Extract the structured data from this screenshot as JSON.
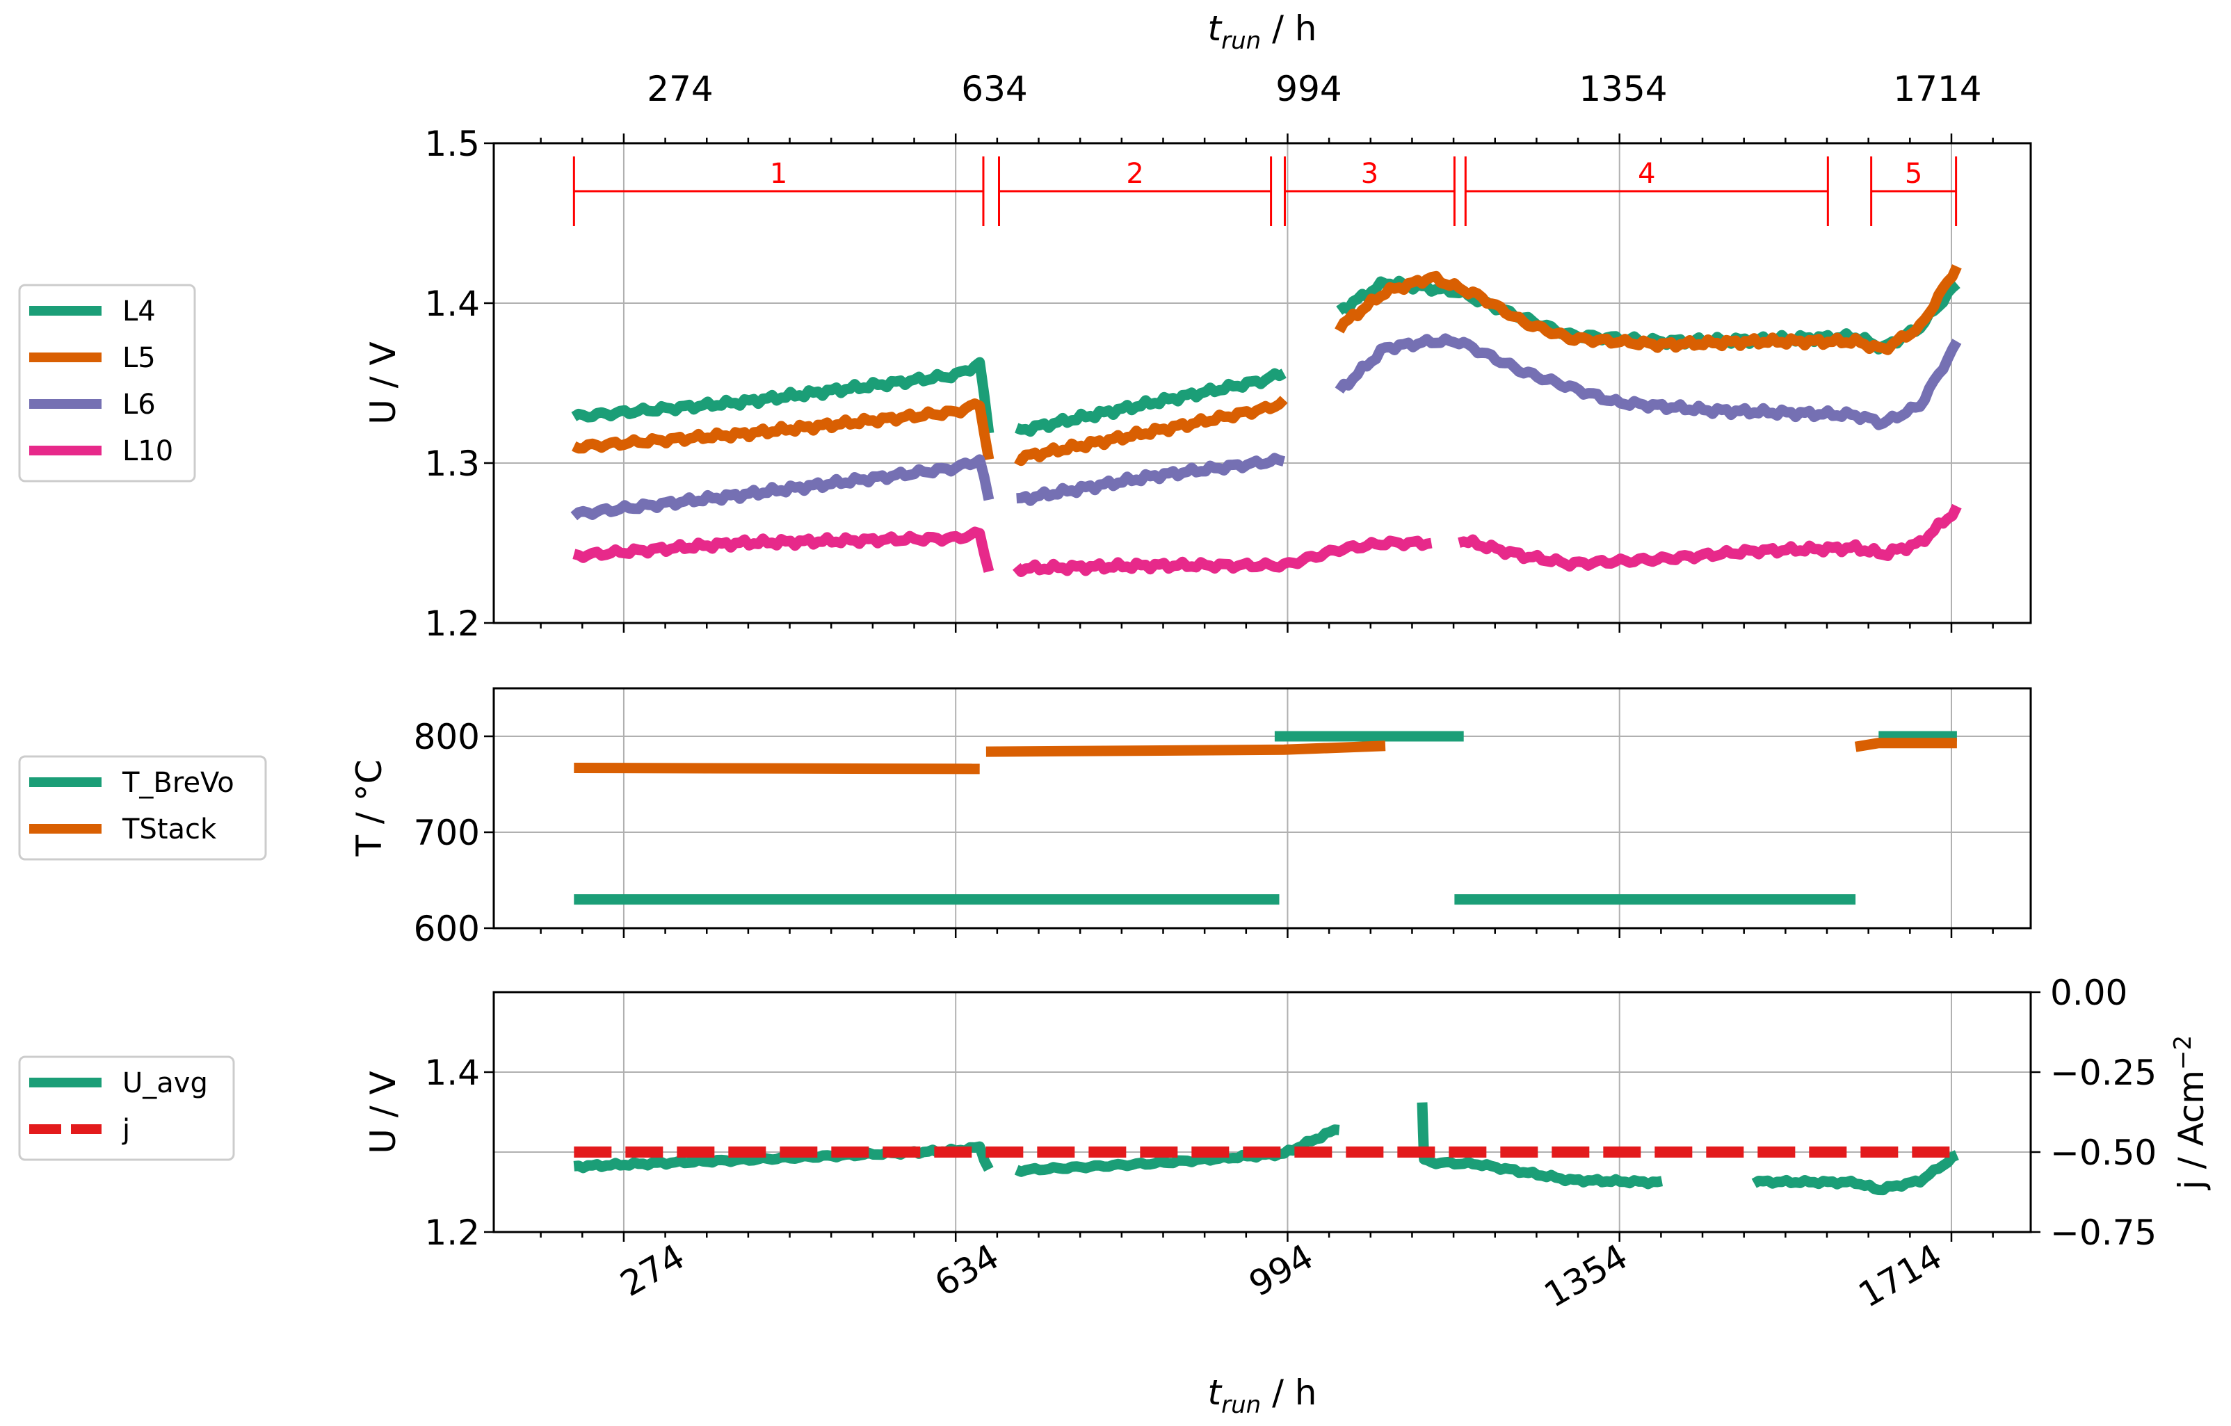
{
  "colors": {
    "L4": "#1b9e77",
    "L5": "#d95f02",
    "L6": "#7570b3",
    "L10": "#e7298a",
    "T_BreVo": "#1b9e77",
    "TStack": "#d95f02",
    "U_avg": "#1b9e77",
    "j": "#e31a1c",
    "segments": "#ff0000"
  },
  "chart_data": [
    {
      "type": "line",
      "title": "",
      "xlabel_top_var": "t",
      "xlabel_top_sub": "run",
      "xlabel_top_unit": " / h",
      "ylabel": "U / V",
      "xlim": [
        133,
        1800
      ],
      "ylim": [
        1.2,
        1.5
      ],
      "xticks": [
        "274",
        "634",
        "994",
        "1354",
        "1714"
      ],
      "yticks": [
        "1.2",
        "1.3",
        "1.4",
        "1.5"
      ],
      "grid": true,
      "legend_position": "left",
      "series": [
        {
          "name": "L4",
          "gaps": [
            5,
            9
          ],
          "points": [
            [
              220,
              1.329
            ],
            [
              400,
              1.338
            ],
            [
              634,
              1.355
            ],
            [
              660,
              1.362
            ],
            [
              670,
              1.32
            ],
            [
              700,
              1.32
            ],
            [
              850,
              1.338
            ],
            [
              970,
              1.352
            ],
            [
              990,
              1.357
            ],
            [
              1050,
              1.395
            ],
            [
              1100,
              1.413
            ],
            [
              1180,
              1.407
            ],
            [
              1230,
              1.395
            ],
            [
              1300,
              1.38
            ],
            [
              1400,
              1.376
            ],
            [
              1500,
              1.377
            ],
            [
              1610,
              1.379
            ],
            [
              1640,
              1.372
            ],
            [
              1680,
              1.385
            ],
            [
              1720,
              1.412
            ]
          ]
        },
        {
          "name": "L5",
          "gaps": [
            5,
            9
          ],
          "points": [
            [
              220,
              1.31
            ],
            [
              400,
              1.318
            ],
            [
              634,
              1.332
            ],
            [
              660,
              1.337
            ],
            [
              670,
              1.302
            ],
            [
              700,
              1.303
            ],
            [
              850,
              1.32
            ],
            [
              970,
              1.334
            ],
            [
              990,
              1.338
            ],
            [
              1050,
              1.385
            ],
            [
              1100,
              1.407
            ],
            [
              1150,
              1.416
            ],
            [
              1200,
              1.405
            ],
            [
              1250,
              1.388
            ],
            [
              1300,
              1.378
            ],
            [
              1400,
              1.374
            ],
            [
              1500,
              1.376
            ],
            [
              1610,
              1.376
            ],
            [
              1640,
              1.371
            ],
            [
              1680,
              1.385
            ],
            [
              1720,
              1.423
            ]
          ]
        },
        {
          "name": "L6",
          "gaps": [
            5,
            8
          ],
          "points": [
            [
              220,
              1.268
            ],
            [
              400,
              1.28
            ],
            [
              634,
              1.297
            ],
            [
              660,
              1.302
            ],
            [
              670,
              1.277
            ],
            [
              700,
              1.277
            ],
            [
              850,
              1.292
            ],
            [
              990,
              1.302
            ],
            [
              1050,
              1.345
            ],
            [
              1100,
              1.372
            ],
            [
              1150,
              1.376
            ],
            [
              1180,
              1.376
            ],
            [
              1250,
              1.357
            ],
            [
              1350,
              1.338
            ],
            [
              1450,
              1.333
            ],
            [
              1610,
              1.33
            ],
            [
              1640,
              1.325
            ],
            [
              1680,
              1.336
            ],
            [
              1720,
              1.375
            ]
          ]
        },
        {
          "name": "L10",
          "gaps": [
            5,
            12
          ],
          "points": [
            [
              220,
              1.242
            ],
            [
              400,
              1.25
            ],
            [
              634,
              1.253
            ],
            [
              660,
              1.256
            ],
            [
              670,
              1.233
            ],
            [
              700,
              1.234
            ],
            [
              850,
              1.236
            ],
            [
              960,
              1.236
            ],
            [
              990,
              1.236
            ],
            [
              1050,
              1.246
            ],
            [
              1100,
              1.25
            ],
            [
              1150,
              1.25
            ],
            [
              1180,
              1.252
            ],
            [
              1250,
              1.242
            ],
            [
              1300,
              1.237
            ],
            [
              1400,
              1.24
            ],
            [
              1500,
              1.245
            ],
            [
              1610,
              1.247
            ],
            [
              1640,
              1.243
            ],
            [
              1680,
              1.25
            ],
            [
              1720,
              1.271
            ]
          ]
        }
      ],
      "segments": [
        {
          "label": "1",
          "start": 220,
          "end": 664
        },
        {
          "label": "2",
          "start": 681,
          "end": 976
        },
        {
          "label": "3",
          "start": 991,
          "end": 1175
        },
        {
          "label": "4",
          "start": 1187,
          "end": 1580
        },
        {
          "label": "5",
          "start": 1627,
          "end": 1719
        }
      ],
      "segment_y": 1.47
    },
    {
      "type": "line",
      "ylabel": "T / °C",
      "xlim": [
        133,
        1800
      ],
      "ylim": [
        600,
        850
      ],
      "yticks": [
        "600",
        "700",
        "800"
      ],
      "grid": true,
      "legend_position": "left",
      "series": [
        {
          "name": "T_BreVo",
          "gaps": [
            2,
            4,
            6
          ],
          "points": [
            [
              220,
              630
            ],
            [
              985,
              630
            ],
            [
              980,
              800
            ],
            [
              1185,
              800
            ],
            [
              1175,
              630
            ],
            [
              1610,
              630
            ],
            [
              1635,
              800
            ],
            [
              1720,
              800
            ]
          ]
        },
        {
          "name": "TStack",
          "gaps": [
            2,
            5
          ],
          "points": [
            [
              220,
              767
            ],
            [
              660,
              766
            ],
            [
              667,
              784
            ],
            [
              990,
              786
            ],
            [
              1100,
              790
            ],
            [
              1610,
              789
            ],
            [
              1635,
              793
            ],
            [
              1720,
              793
            ]
          ]
        }
      ]
    },
    {
      "type": "line",
      "xlabel_var": "t",
      "xlabel_sub": "run",
      "xlabel_unit": " / h",
      "ylabel": "U / V",
      "y2label_base": "j / Acm",
      "y2label_exp": "−2",
      "xlim": [
        133,
        1800
      ],
      "ylim": [
        1.2,
        1.5
      ],
      "y2lim": [
        -0.75,
        0.0
      ],
      "xticks": [
        "274",
        "634",
        "994",
        "1354",
        "1714"
      ],
      "yticks": [
        "1.2",
        "1.4"
      ],
      "y2ticks": [
        "0.00",
        "−0.25",
        "−0.50",
        "−0.75"
      ],
      "grid": true,
      "legend_position": "left",
      "series": [
        {
          "name": "U_avg",
          "axis": "left",
          "gaps": [
            5,
            9,
            15
          ],
          "points": [
            [
              220,
              1.282
            ],
            [
              400,
              1.29
            ],
            [
              634,
              1.302
            ],
            [
              660,
              1.306
            ],
            [
              670,
              1.278
            ],
            [
              700,
              1.277
            ],
            [
              850,
              1.286
            ],
            [
              990,
              1.298
            ],
            [
              1050,
              1.33
            ],
            [
              1140,
              1.363
            ],
            [
              1142,
              1.29
            ],
            [
              1150,
              1.287
            ],
            [
              1200,
              1.285
            ],
            [
              1300,
              1.265
            ],
            [
              1400,
              1.262
            ],
            [
              1500,
              1.263
            ],
            [
              1610,
              1.262
            ],
            [
              1635,
              1.253
            ],
            [
              1680,
              1.264
            ],
            [
              1720,
              1.296
            ]
          ]
        },
        {
          "name": "j",
          "axis": "right",
          "dashed": true,
          "gaps": [],
          "points": [
            [
              220,
              -0.5
            ],
            [
              1720,
              -0.5
            ]
          ]
        }
      ]
    }
  ]
}
